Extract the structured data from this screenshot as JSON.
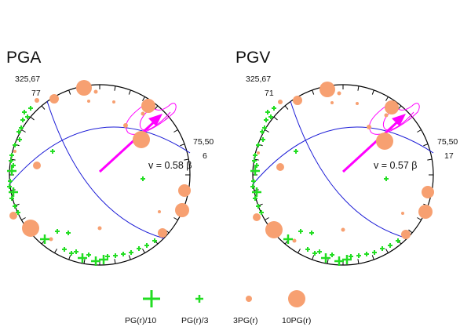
{
  "colors": {
    "circle": "#000000",
    "great_circle": "#1a1ad6",
    "arrow": "#ff00ff",
    "plus_marker": "#22dd22",
    "dot_marker": "#f7a071"
  },
  "panels": [
    {
      "title": "PGA",
      "plane1_label": "325,67",
      "plane1_value": "77",
      "plane2_label": "75,50",
      "plane2_value": "6",
      "velocity_label": "v = 0.58 β"
    },
    {
      "title": "PGV",
      "plane1_label": "325,67",
      "plane1_value": "71",
      "plane2_label": "75,50",
      "plane2_value": "17",
      "velocity_label": "v = 0.57 β"
    }
  ],
  "legend": [
    {
      "label": "PG(r)/10",
      "marker": "big-plus"
    },
    {
      "label": "PG(r)/3",
      "marker": "small-plus"
    },
    {
      "label": "3PG(r)",
      "marker": "small-dot"
    },
    {
      "label": "10PG(r)",
      "marker": "big-dot"
    }
  ]
}
